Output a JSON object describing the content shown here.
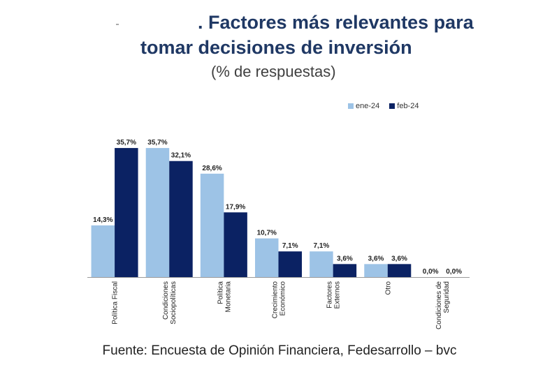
{
  "header": {
    "title_line1": ". Factores más relevantes para",
    "title_line2": "tomar decisiones de inversión",
    "subtitle": "(% de respuestas)"
  },
  "source": "Fuente: Encuesta de Opinión Financiera, Fedesarrollo – bvc",
  "chart_data": {
    "type": "bar",
    "title": "Factores más relevantes para tomar decisiones de inversión",
    "subtitle": "(% de respuestas)",
    "xlabel": "",
    "ylabel": "",
    "ylim": [
      0,
      40
    ],
    "grid": false,
    "legend_position": "top-right",
    "categories": [
      [
        "Política Fiscal"
      ],
      [
        "Condiciones",
        "Sociopolíticas"
      ],
      [
        "Política",
        "Monetaria"
      ],
      [
        "Crecimiento",
        "Económico"
      ],
      [
        "Factores",
        "Externos"
      ],
      [
        "Otro"
      ],
      [
        "Condiciones de",
        "Seguridad"
      ]
    ],
    "series": [
      {
        "name": "ene-24",
        "color": "#9DC3E6",
        "values": [
          14.3,
          35.7,
          28.6,
          10.7,
          7.1,
          3.6,
          0.0
        ],
        "labels": [
          "14,3%",
          "35,7%",
          "28,6%",
          "10,7%",
          "7,1%",
          "3,6%",
          "0,0%"
        ]
      },
      {
        "name": "feb-24",
        "color": "#0B2263",
        "values": [
          35.7,
          32.1,
          17.9,
          7.1,
          3.6,
          3.6,
          0.0
        ],
        "labels": [
          "35,7%",
          "32,1%",
          "17,9%",
          "7,1%",
          "3,6%",
          "3,6%",
          "0,0%"
        ]
      }
    ]
  }
}
